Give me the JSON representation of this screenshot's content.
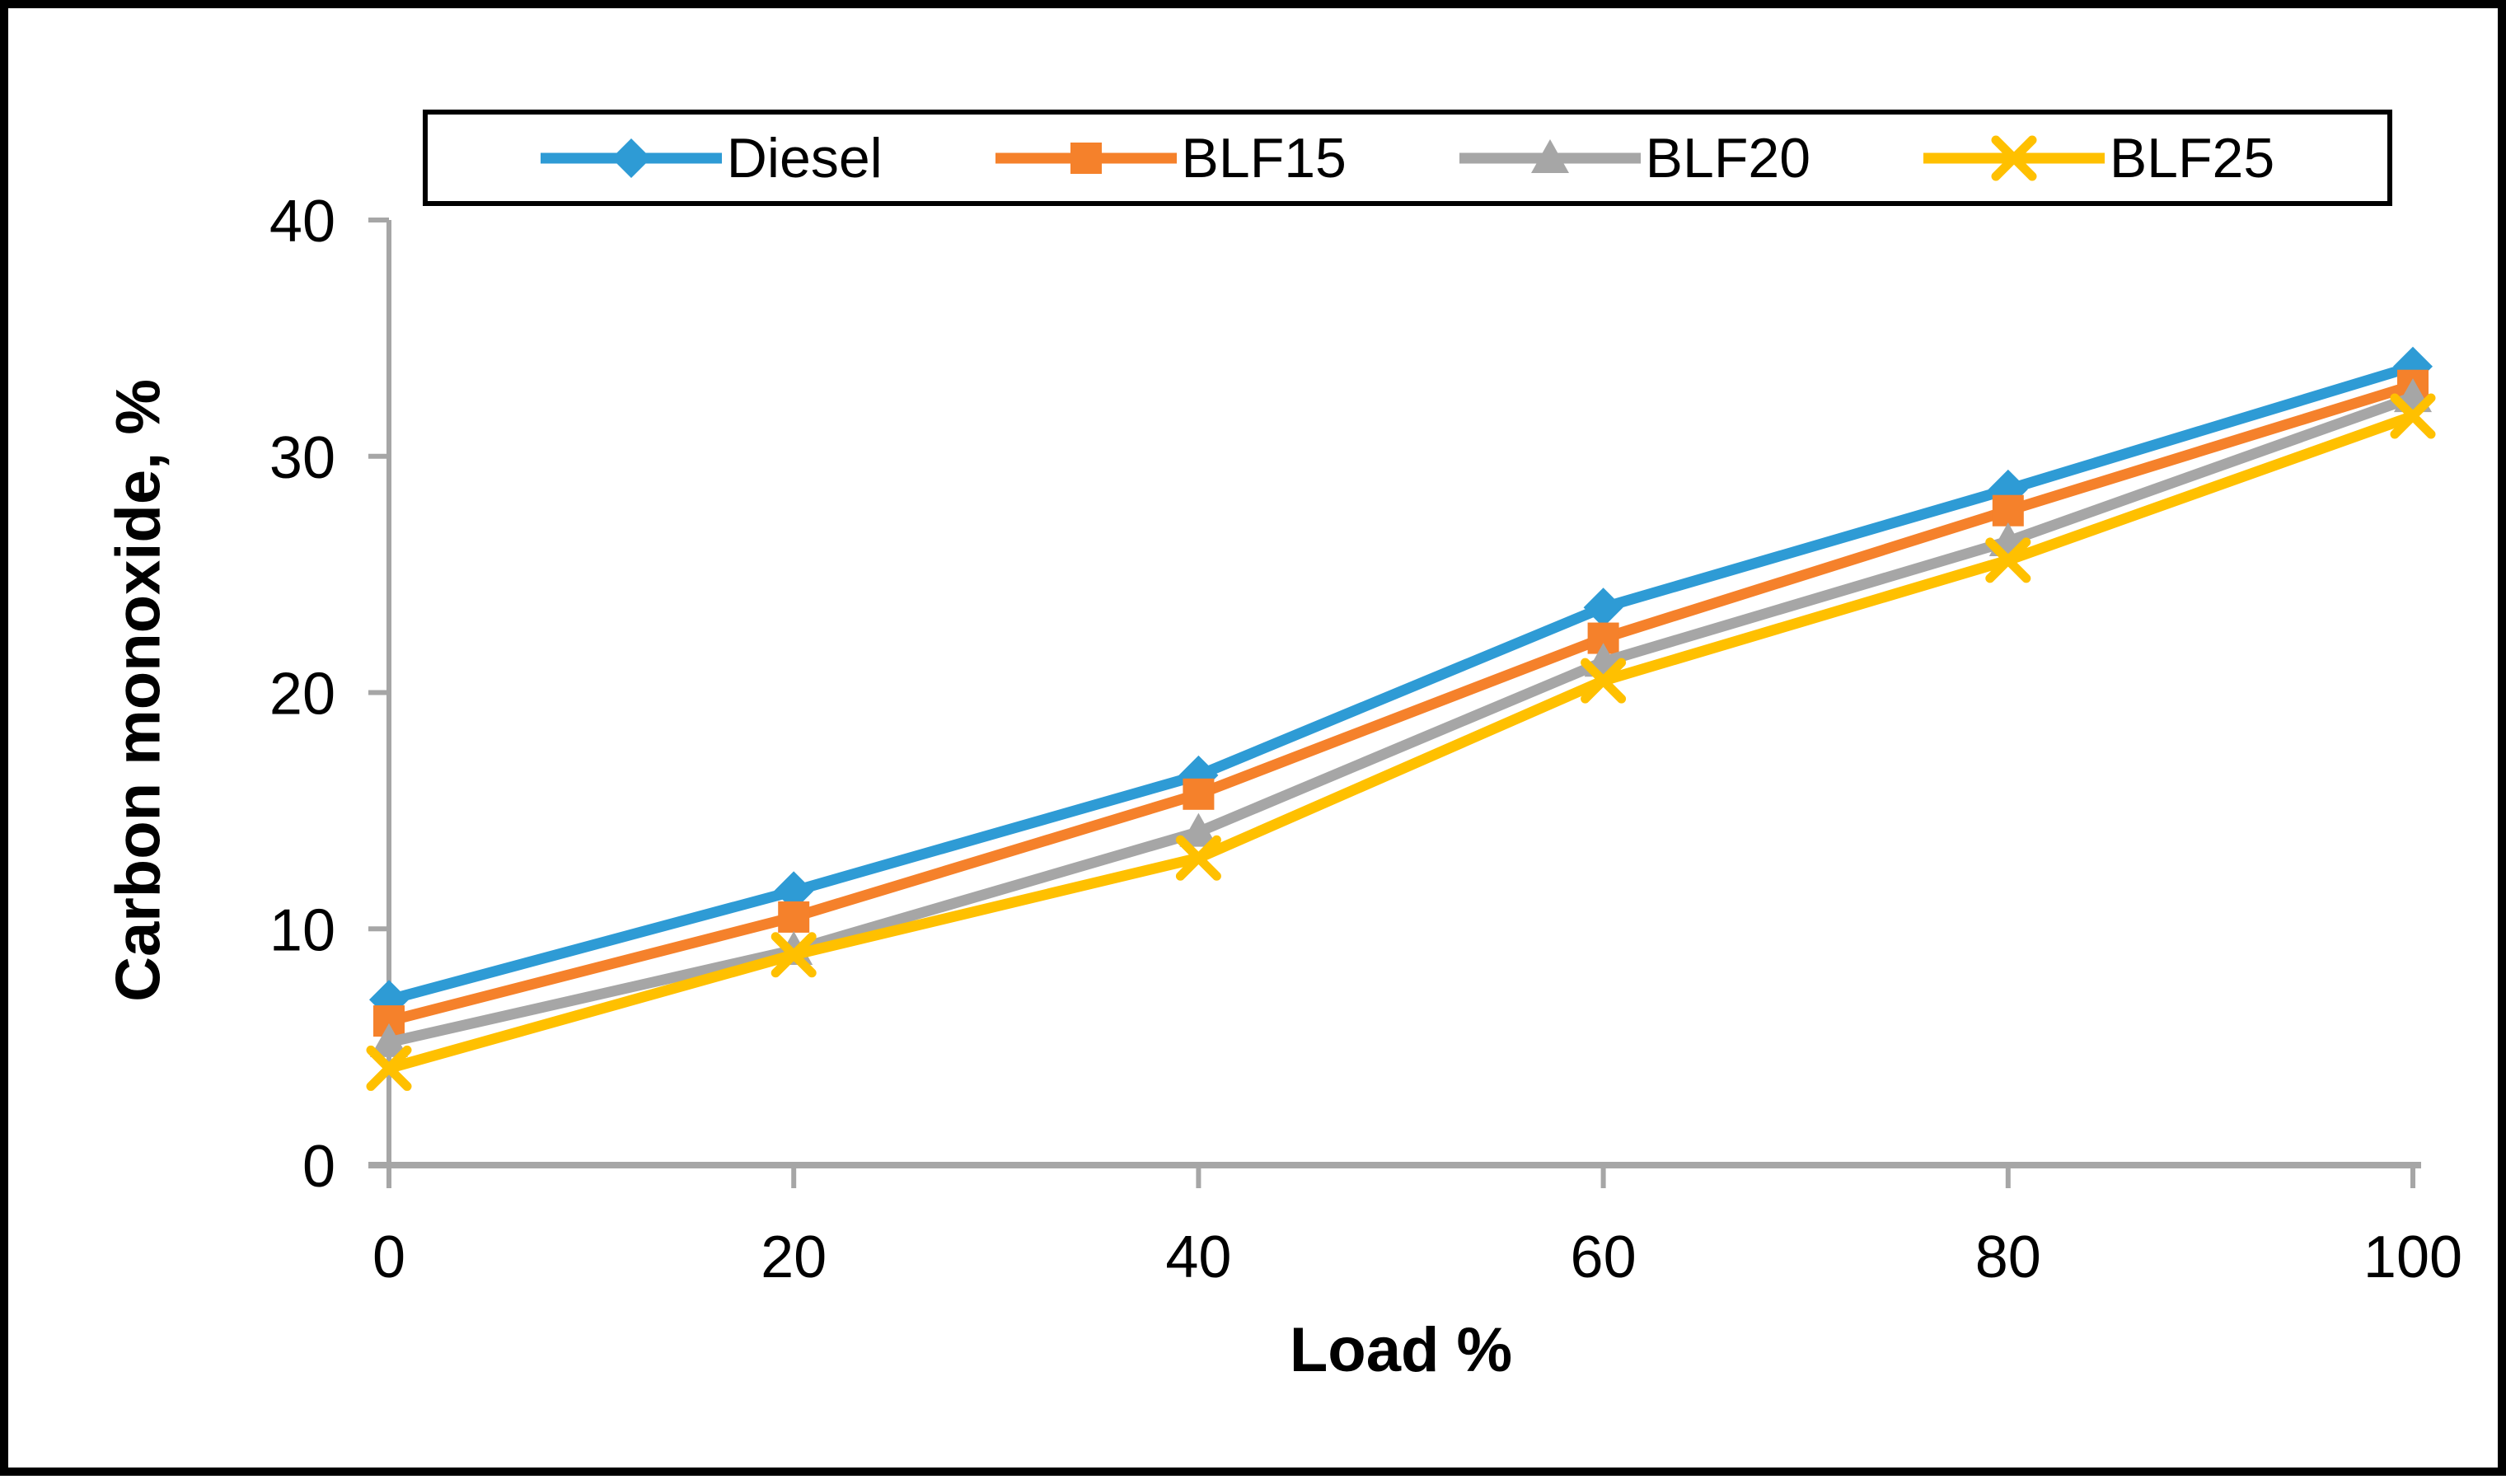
{
  "chart_data": {
    "type": "line",
    "title": "",
    "xlabel": "Load %",
    "ylabel": "Carbon monoxide,  %",
    "x": [
      0,
      20,
      40,
      60,
      80,
      100
    ],
    "xticks": [
      "0",
      "20",
      "40",
      "60",
      "80",
      "100"
    ],
    "yticks": [
      "0",
      "10",
      "20",
      "30",
      "40"
    ],
    "xlim": [
      0,
      100
    ],
    "ylim": [
      0,
      40
    ],
    "grid": false,
    "legend_position": "top",
    "axis_color": "#A6A6A6",
    "frame_color": "#000000",
    "series": [
      {
        "name": "Diesel",
        "marker": "diamond",
        "color": "#2E9BD5",
        "values": [
          7.0,
          11.6,
          16.5,
          23.6,
          28.6,
          33.8
        ]
      },
      {
        "name": "BLF15",
        "marker": "square",
        "color": "#F5812B",
        "values": [
          6.1,
          10.5,
          15.7,
          22.3,
          27.7,
          33.0
        ]
      },
      {
        "name": "BLF20",
        "marker": "triangle",
        "color": "#A6A6A6",
        "values": [
          5.2,
          9.1,
          14.1,
          21.3,
          26.4,
          32.5
        ]
      },
      {
        "name": "BLF25",
        "marker": "x",
        "color": "#FFC000",
        "values": [
          4.1,
          8.9,
          13.0,
          20.5,
          25.6,
          31.7
        ]
      }
    ]
  }
}
